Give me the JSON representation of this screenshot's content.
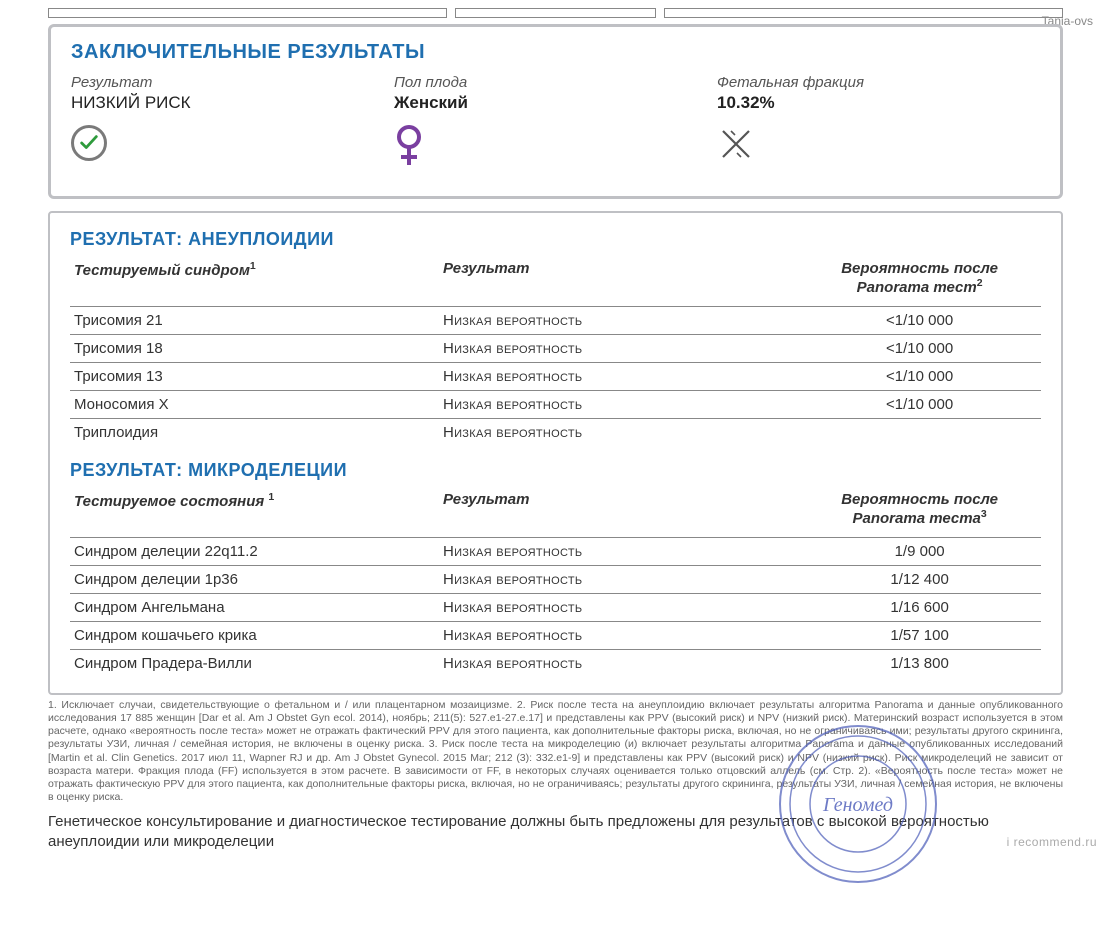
{
  "watermark_top": "Tania-ovs",
  "watermark_bottom": "i recommend.ru",
  "summary": {
    "title": "ЗАКЛЮЧИТЕЛЬНЫЕ РЕЗУЛЬТАТЫ",
    "result_label": "Результат",
    "result_value": "НИЗКИЙ РИСК",
    "sex_label": "Пол плода",
    "sex_value": "Женский",
    "ff_label": "Фетальная фракция",
    "ff_value": "10.32%"
  },
  "aneuploidies": {
    "title": "РЕЗУЛЬТАТ: АНЕУПЛОИДИИ",
    "col1": "Тестируемый синдром",
    "col1_sup": "1",
    "col2": "Результат",
    "col3_line1": "Вероятность после",
    "col3_line2": "Panorama тест",
    "col3_sup": "2",
    "rows": [
      {
        "name": "Трисомия 21",
        "result": "Низкая вероятность",
        "prob": "<1/10 000"
      },
      {
        "name": "Трисомия 18",
        "result": "Низкая вероятность",
        "prob": "<1/10 000"
      },
      {
        "name": "Трисомия 13",
        "result": "Низкая вероятность",
        "prob": "<1/10 000"
      },
      {
        "name": "Моносомия Х",
        "result": "Низкая вероятность",
        "prob": "<1/10 000"
      },
      {
        "name": "Триплоидия",
        "result": "Низкая вероятность",
        "prob": ""
      }
    ]
  },
  "microdeletions": {
    "title": "РЕЗУЛЬТАТ: МИКРОДЕЛЕЦИИ",
    "col1": "Тестируемое состояния",
    "col1_sup": "1",
    "col2": "Результат",
    "col3_line1": "Вероятность после",
    "col3_line2": "Panorama теста",
    "col3_sup": "3",
    "rows": [
      {
        "name": "Синдром делеции 22q11.2",
        "result": "Низкая вероятность",
        "prob": "1/9 000"
      },
      {
        "name": "Синдром делеции 1p36",
        "result": "Низкая вероятность",
        "prob": "1/12 400"
      },
      {
        "name": "Синдром Ангельмана",
        "result": "Низкая вероятность",
        "prob": "1/16 600"
      },
      {
        "name": "Синдром кошачьего крика",
        "result": "Низкая вероятность",
        "prob": "1/57 100"
      },
      {
        "name": "Синдром Прадера-Вилли",
        "result": "Низкая вероятность",
        "prob": "1/13 800"
      }
    ]
  },
  "footnote": "1. Исключает случаи, свидетельствующие о фетальном и / или плацентарном мозаицизме. 2. Риск после теста на анеуплоидию включает результаты алгоритма Panorama и данные опубликованного исследования 17 885 женщин [Dar et al. Am J Obstet Gyn ecol. 2014), ноябрь; 211(5): 527.e1-27.e.17] и представлены как PPV (высокий риск) и NPV (низкий риск). Материнский возраст используется в этом расчете, однако «вероятность после теста» может не отражать фактический PPV для этого пациента, как дополнительные факторы риска, включая, но не ограничиваясь ими; результаты другого скрининга, результаты УЗИ, личная / семейная история, не включены в оценку риска. 3. Риск после теста на микроделецию (и) включает результаты алгоритма Panorama и данные опубликованных исследований [Martin et al. Clin Genetics. 2017 июл 11, Wapner RJ и др. Am J Obstet Gynecol. 2015 Mar; 212 (3): 332.e1-9] и представлены как PPV (высокий риск) и NPV (низкий риск). Риск микроделеций не зависит от возраста матери. Фракция плода (FF) используется в этом расчете. В зависимости от FF, в некоторых случаях оценивается только отцовский аллель (см. Стр. 2). «Вероятность после теста» может не отражать фактическую PPV для этого пациента, как дополнительные факторы риска, включая, но не ограничиваясь; результаты другого скрининга, результаты УЗИ, личная / семейная история, не включены в оценку риска.",
  "advice": "Генетическое консультирование и диагностическое тестирование должны быть предложены для результатов с высокой вероятностью анеуплоидии или микроделеции",
  "stamp_text": "Геномед",
  "colors": {
    "heading": "#1f6fb0",
    "border": "#bfc0c4",
    "check": "#2e9b3c",
    "female": "#7a3fa0",
    "stamp": "#4a5bb8"
  }
}
